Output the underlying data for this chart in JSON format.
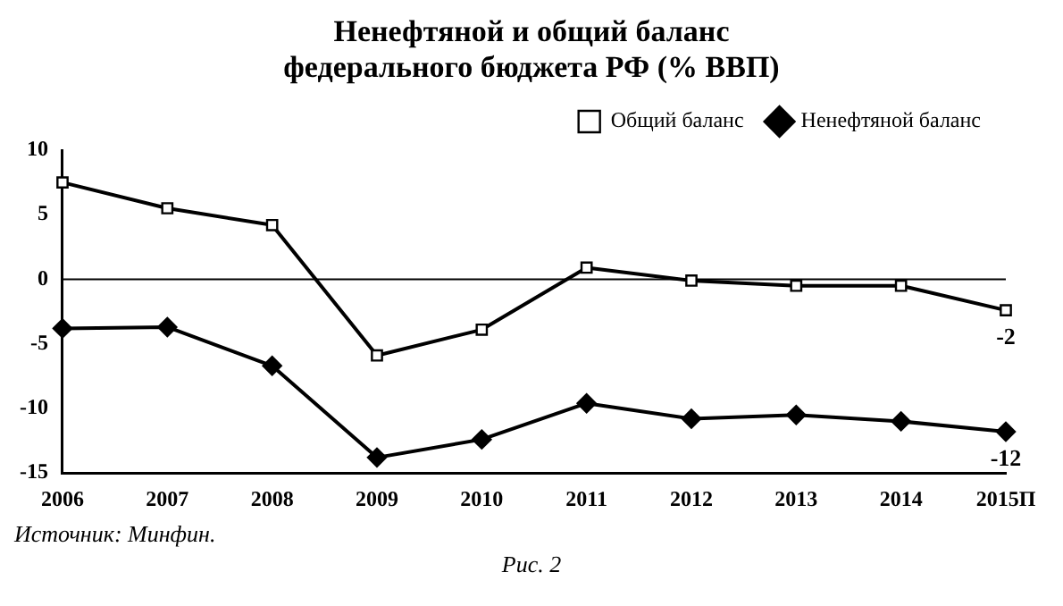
{
  "chart_data": {
    "type": "line",
    "title": "Ненефтяной и общий баланс федерального бюджета РФ (% ВВП)",
    "categories": [
      "2006",
      "2007",
      "2008",
      "2009",
      "2010",
      "2011",
      "2012",
      "2013",
      "2014",
      "2015П"
    ],
    "series": [
      {
        "name": "Общий баланс",
        "color": "#000000",
        "marker": "square",
        "values": [
          7.5,
          5.5,
          4.2,
          -5.9,
          -3.9,
          0.9,
          -0.1,
          -0.5,
          -0.5,
          -2.4
        ],
        "value_labels": [
          null,
          null,
          null,
          null,
          null,
          null,
          null,
          null,
          null,
          "-2"
        ]
      },
      {
        "name": "Ненефтяной баланс",
        "color": "#000000",
        "marker": "diamond",
        "values": [
          -3.8,
          -3.7,
          -6.7,
          -13.8,
          -12.4,
          -9.6,
          -10.8,
          -10.5,
          -11.0,
          -11.8
        ],
        "value_labels": [
          null,
          null,
          null,
          null,
          null,
          null,
          null,
          null,
          null,
          "-12"
        ]
      }
    ],
    "ylim": [
      -15,
      10
    ],
    "yticks": [
      -15,
      -10,
      -5,
      0,
      5,
      10
    ],
    "grid": false,
    "legend": "top right",
    "ref_lines": [
      {
        "axis": "y",
        "value": 0,
        "color": "#000000"
      }
    ],
    "annotations": [
      "Источник: Минфин.",
      "Рис. 2"
    ]
  }
}
